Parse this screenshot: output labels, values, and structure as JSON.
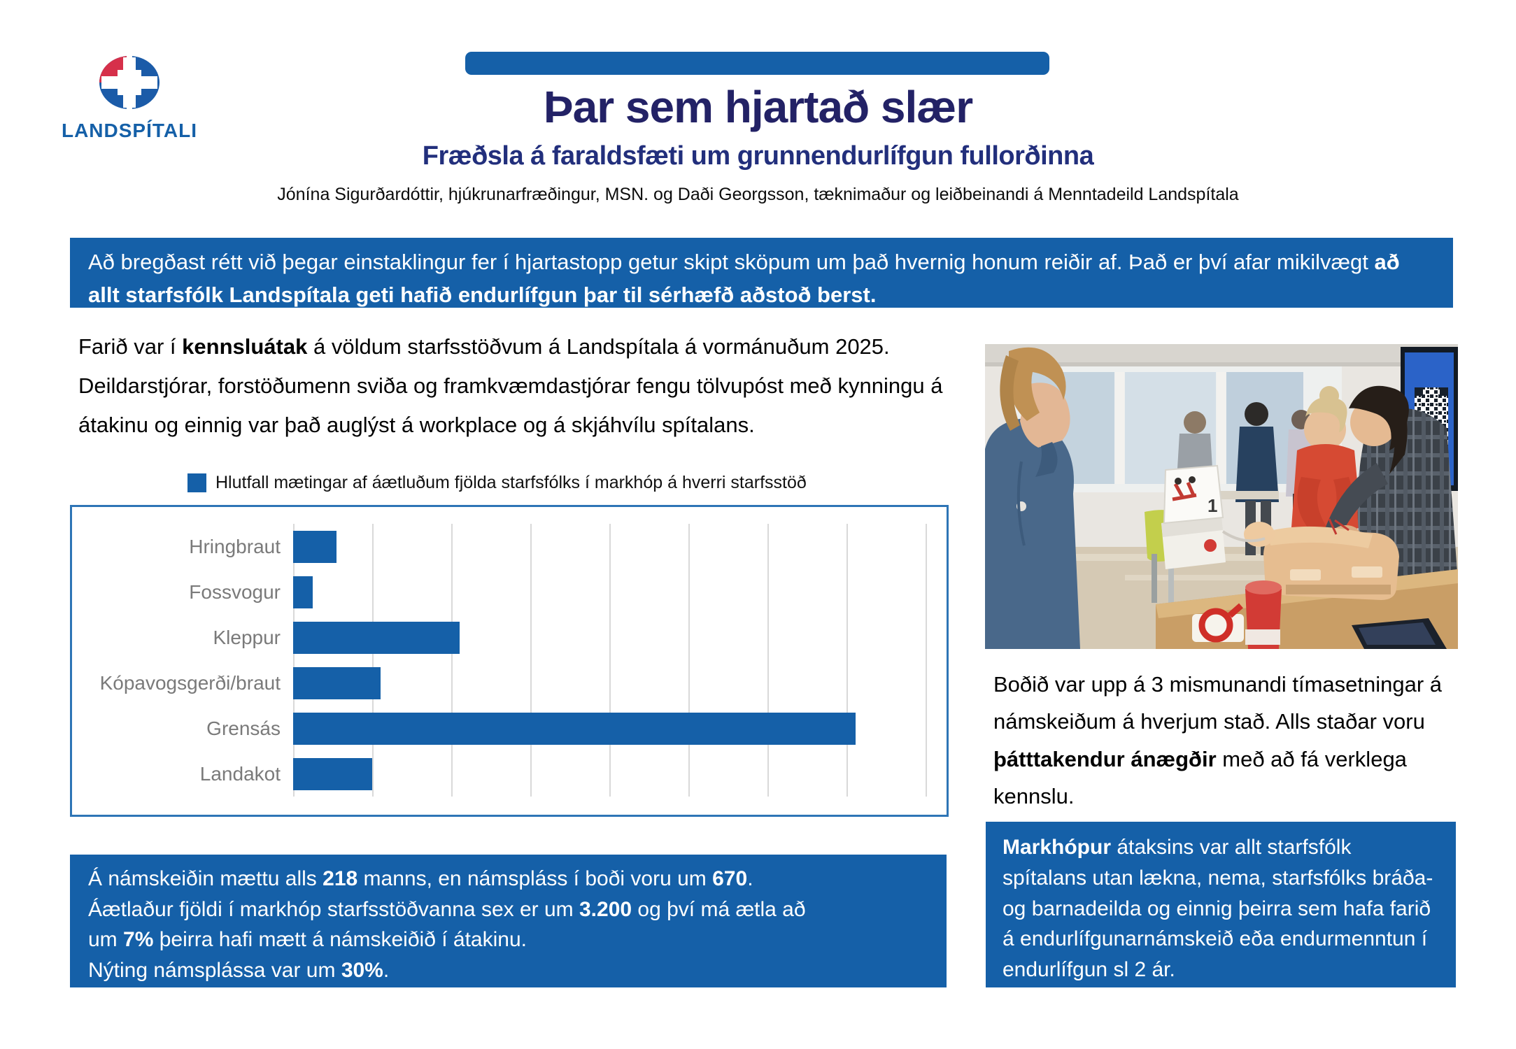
{
  "header": {
    "logo_text": "LANDSPÍTALI",
    "title": "Þar sem hjartað slær",
    "subtitle": "Fræðsla á faraldsfæti um grunnendurlífgun fullorðinna",
    "authors": "Jónína Sigurðardóttir, hjúkrunarfræðingur, MSN. og Daði Georgsson, tæknimaður og leiðbeinandi á Menntadeild Landspítala"
  },
  "colors": {
    "brand_blue": "#1560a8",
    "title_navy": "#232266",
    "chart_border": "#2e75b6",
    "label_gray": "#7a7a7a",
    "logo_red": "#d6304a"
  },
  "banner": {
    "segments": [
      {
        "t": "Að bregðast rétt við þegar einstaklingur fer í hjartastopp getur skipt sköpum um það hvernig honum reiðir af.  Það er því afar mikilvægt ",
        "b": false
      },
      {
        "t": "að allt starfsfólk Landspítala geti hafið endurlífgun þar til sérhæfð aðstoð berst.",
        "b": true
      }
    ]
  },
  "intro": {
    "segments": [
      {
        "t": "Farið var í ",
        "b": false
      },
      {
        "t": "kennsluátak",
        "b": true
      },
      {
        "t": " á völdum starfsstöðvum á Landspítala á vormánuðum 2025. Deildarstjórar, forstöðumenn sviða og framkvæmdastjórar fengu tölvupóst með kynningu á átakinu og einnig var það auglýst á workplace og á skjáhvílu spítalans.",
        "b": false
      }
    ]
  },
  "chart_data": {
    "type": "bar",
    "orientation": "horizontal",
    "legend": "Hlutfall mætingar af áætluðum fjölda starfsfólks í markhóp á hverri starfsstöð",
    "legend_position": "top",
    "categories": [
      "Hringbraut",
      "Fossvogur",
      "Kleppur",
      "Kópavogsgerði/braut",
      "Grensás",
      "Landakot"
    ],
    "values": [
      5.5,
      2.5,
      21,
      11,
      71,
      10
    ],
    "values_note": "estimated from unlabeled gridlines; gridline step = 10",
    "xlim": [
      0,
      80
    ],
    "gridline_step": 10,
    "x_ticks_labeled": false,
    "bar_color": "#1560a8",
    "grid": true
  },
  "right_note": {
    "segments": [
      {
        "t": "Boðið var upp á 3 mismunandi tímasetningar á námskeiðum á hverjum stað.  Alls staðar voru ",
        "b": false
      },
      {
        "t": "þátttakendur ánægðir",
        "b": true
      },
      {
        "t": " með að fá verklega kennslu.",
        "b": false
      }
    ]
  },
  "stats_box": {
    "lines": [
      [
        {
          "t": "Á námskeiðin mættu alls ",
          "b": false
        },
        {
          "t": "218",
          "b": true
        },
        {
          "t": " manns, en námspláss í boði voru um ",
          "b": false
        },
        {
          "t": "670",
          "b": true
        },
        {
          "t": ".",
          "b": false
        }
      ],
      [
        {
          "t": "Áætlaður fjöldi í markhóp starfsstöðvanna sex er um ",
          "b": false
        },
        {
          "t": "3.200",
          "b": true
        },
        {
          "t": " og því má ætla að",
          "b": false
        }
      ],
      [
        {
          "t": "um ",
          "b": false
        },
        {
          "t": "7%",
          "b": true
        },
        {
          "t": " þeirra hafi mætt á námskeiðið í átakinu.",
          "b": false
        }
      ],
      [
        {
          "t": "Nýting námsplássa var um ",
          "b": false
        },
        {
          "t": "30%",
          "b": true
        },
        {
          "t": ".",
          "b": false
        }
      ]
    ]
  },
  "target_box": {
    "segments": [
      {
        "t": "Markhópur",
        "b": true
      },
      {
        "t": " átaksins var allt starfsfólk spítalans utan lækna, nema, starfsfólks bráða- og barnadeilda og einnig þeirra sem hafa farið á endurlífgunarnámskeið eða endurmenntun í endurlífgun sl 2 ár.",
        "b": false
      }
    ]
  }
}
